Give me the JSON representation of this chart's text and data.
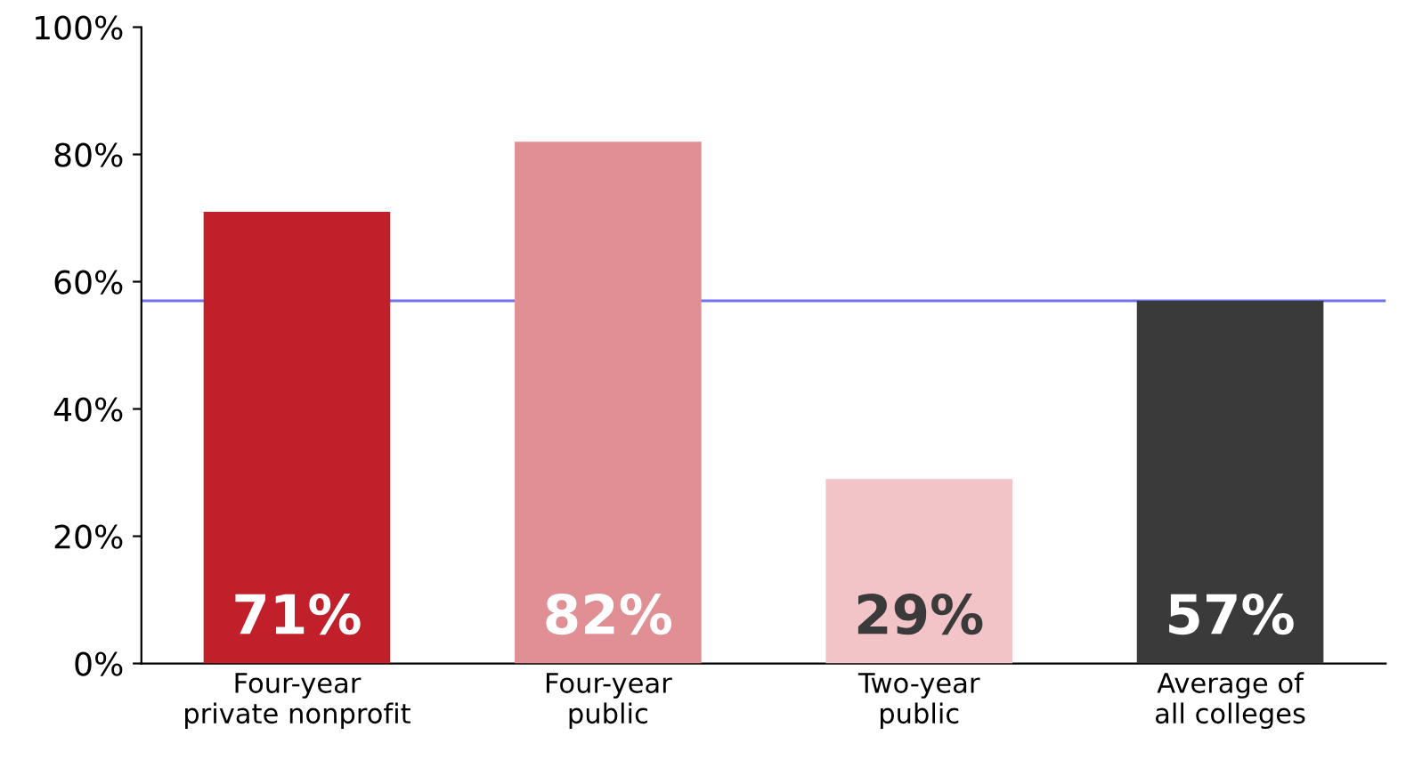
{
  "chart_data": {
    "type": "bar",
    "categories": [
      "Four-year\nprivate nonprofit",
      "Four-year\npublic",
      "Two-year\npublic",
      "Average of\nall colleges"
    ],
    "values": [
      71,
      82,
      29,
      57
    ],
    "colors": [
      "#c11f29",
      "#e08f94",
      "#f2c3c7",
      "#3a3a3a"
    ],
    "value_labels": [
      "71%",
      "82%",
      "29%",
      "57%"
    ],
    "ylim": [
      0,
      100
    ],
    "yticks": [
      {
        "value": 0,
        "label": "0%"
      },
      {
        "value": 20,
        "label": "20%"
      },
      {
        "value": 40,
        "label": "40%"
      },
      {
        "value": 60,
        "label": "60%"
      },
      {
        "value": 80,
        "label": "80%"
      },
      {
        "value": 100,
        "label": "100%"
      }
    ],
    "ref_lines": [
      {
        "axis": "y",
        "value": 57,
        "color": "#7070ee"
      }
    ],
    "grid": false
  }
}
